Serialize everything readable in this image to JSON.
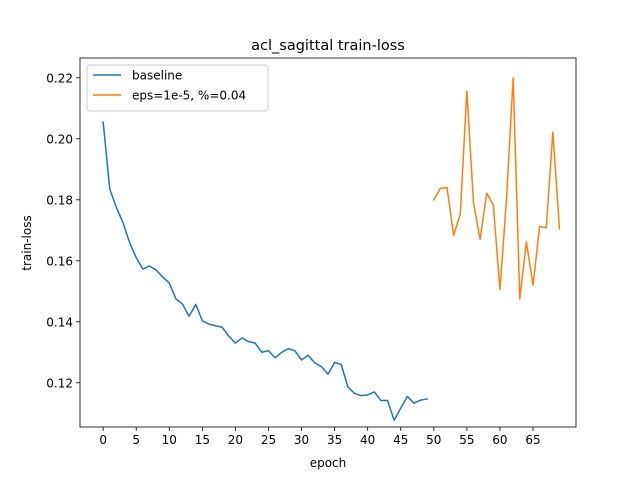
{
  "chart_data": {
    "type": "line",
    "title": "acl_sagittal train-loss",
    "xlabel": "epoch",
    "ylabel": "train-loss",
    "xlim": [
      -3.5,
      71.5
    ],
    "ylim": [
      0.1055,
      0.2265
    ],
    "xticks": [
      0,
      5,
      10,
      15,
      20,
      25,
      30,
      35,
      40,
      45,
      50,
      55,
      60,
      65
    ],
    "yticks": [
      0.12,
      0.14,
      0.16,
      0.18,
      0.2,
      0.22
    ],
    "ytick_labels": [
      "0.12",
      "0.14",
      "0.16",
      "0.18",
      "0.20",
      "0.22"
    ],
    "grid": false,
    "legend_position": "upper-left",
    "series": [
      {
        "name": "baseline",
        "color": "#1f77b4",
        "x": [
          0,
          1,
          2,
          3,
          4,
          5,
          6,
          7,
          8,
          9,
          10,
          11,
          12,
          13,
          14,
          15,
          16,
          17,
          18,
          19,
          20,
          21,
          22,
          23,
          24,
          25,
          26,
          27,
          28,
          29,
          30,
          31,
          32,
          33,
          34,
          35,
          36,
          37,
          38,
          39,
          40,
          41,
          42,
          43,
          44,
          45,
          46,
          47,
          48,
          49
        ],
        "y": [
          0.2055,
          0.1835,
          0.1775,
          0.1725,
          0.166,
          0.161,
          0.1573,
          0.1583,
          0.157,
          0.1547,
          0.1527,
          0.1475,
          0.1458,
          0.1418,
          0.1457,
          0.1403,
          0.1392,
          0.1387,
          0.1382,
          0.1353,
          0.133,
          0.1347,
          0.1335,
          0.133,
          0.13,
          0.1305,
          0.1282,
          0.13,
          0.1312,
          0.1305,
          0.1275,
          0.129,
          0.1265,
          0.1253,
          0.1228,
          0.1267,
          0.126,
          0.1187,
          0.1165,
          0.1158,
          0.116,
          0.117,
          0.1142,
          0.1142,
          0.1077,
          0.1117,
          0.1155,
          0.1133,
          0.1143,
          0.1147
        ]
      },
      {
        "name": "eps=1e-5, %=0.04",
        "color": "#ff7f0e",
        "x": [
          50,
          51,
          52,
          53,
          54,
          55,
          56,
          57,
          58,
          59,
          60,
          61,
          62,
          63,
          64,
          65,
          66,
          67,
          68,
          69
        ],
        "y": [
          0.18,
          0.1838,
          0.184,
          0.1683,
          0.1753,
          0.2157,
          0.179,
          0.167,
          0.1822,
          0.1783,
          0.1505,
          0.1805,
          0.22,
          0.1475,
          0.1662,
          0.152,
          0.1713,
          0.1708,
          0.2022,
          0.1705
        ]
      }
    ]
  }
}
